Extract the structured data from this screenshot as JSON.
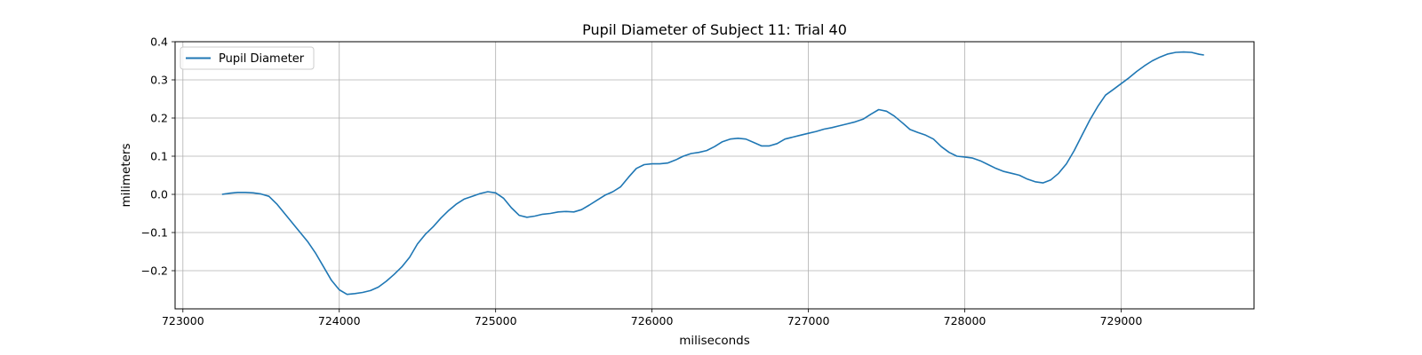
{
  "chart_data": {
    "type": "line",
    "title": "Pupil Diameter of Subject 11: Trial 40",
    "xlabel": "miliseconds",
    "ylabel": "milimeters",
    "xlim": [
      722950,
      729850
    ],
    "ylim": [
      -0.3,
      0.4
    ],
    "xticks": [
      723000,
      724000,
      725000,
      726000,
      727000,
      728000,
      729000
    ],
    "yticks": [
      -0.2,
      -0.1,
      0.0,
      0.1,
      0.2,
      0.3,
      0.4
    ],
    "xtick_labels": [
      "723000",
      "724000",
      "725000",
      "726000",
      "727000",
      "728000",
      "729000"
    ],
    "ytick_labels": [
      "−0.2",
      "−0.1",
      "0.0",
      "0.1",
      "0.2",
      "0.3",
      "0.4"
    ],
    "grid": true,
    "legend": {
      "position": "upper-left",
      "entries": [
        "Pupil Diameter"
      ]
    },
    "series": [
      {
        "name": "Pupil Diameter",
        "color": "#1f77b4",
        "x": [
          723250,
          723300,
          723350,
          723400,
          723450,
          723500,
          723550,
          723600,
          723650,
          723700,
          723750,
          723800,
          723850,
          723900,
          723950,
          724000,
          724050,
          724100,
          724150,
          724200,
          724250,
          724300,
          724350,
          724400,
          724450,
          724500,
          724550,
          724600,
          724650,
          724700,
          724750,
          724800,
          724850,
          724900,
          724950,
          725000,
          725050,
          725100,
          725150,
          725200,
          725250,
          725300,
          725350,
          725400,
          725450,
          725500,
          725550,
          725600,
          725650,
          725700,
          725750,
          725800,
          725850,
          725900,
          725950,
          726000,
          726050,
          726100,
          726150,
          726200,
          726250,
          726300,
          726350,
          726400,
          726450,
          726500,
          726550,
          726600,
          726650,
          726700,
          726750,
          726800,
          726850,
          726900,
          726950,
          727000,
          727050,
          727100,
          727150,
          727200,
          727250,
          727300,
          727350,
          727400,
          727450,
          727500,
          727550,
          727600,
          727650,
          727700,
          727750,
          727800,
          727850,
          727900,
          727950,
          728000,
          728050,
          728100,
          728150,
          728200,
          728250,
          728300,
          728350,
          728400,
          728450,
          728500,
          728550,
          728600,
          728650,
          728700,
          728750,
          728800,
          728850,
          728900,
          728950,
          729000,
          729050,
          729100,
          729150,
          729200,
          729250,
          729300,
          729350,
          729400,
          729450,
          729500,
          729530
        ],
        "values": [
          0.0,
          0.003,
          0.005,
          0.005,
          0.004,
          0.001,
          -0.005,
          -0.025,
          -0.05,
          -0.075,
          -0.1,
          -0.125,
          -0.155,
          -0.19,
          -0.225,
          -0.25,
          -0.262,
          -0.26,
          -0.257,
          -0.252,
          -0.243,
          -0.228,
          -0.21,
          -0.19,
          -0.165,
          -0.13,
          -0.105,
          -0.085,
          -0.062,
          -0.042,
          -0.025,
          -0.012,
          -0.005,
          0.002,
          0.007,
          0.004,
          -0.01,
          -0.035,
          -0.055,
          -0.06,
          -0.057,
          -0.052,
          -0.05,
          -0.046,
          -0.045,
          -0.046,
          -0.04,
          -0.028,
          -0.015,
          -0.002,
          0.007,
          0.02,
          0.045,
          0.068,
          0.078,
          0.08,
          0.08,
          0.082,
          0.09,
          0.1,
          0.107,
          0.11,
          0.115,
          0.125,
          0.138,
          0.145,
          0.147,
          0.145,
          0.136,
          0.127,
          0.127,
          0.133,
          0.145,
          0.15,
          0.155,
          0.16,
          0.165,
          0.171,
          0.175,
          0.18,
          0.185,
          0.19,
          0.197,
          0.21,
          0.222,
          0.218,
          0.205,
          0.188,
          0.17,
          0.162,
          0.155,
          0.145,
          0.125,
          0.11,
          0.1,
          0.098,
          0.095,
          0.088,
          0.078,
          0.068,
          0.06,
          0.055,
          0.05,
          0.04,
          0.033,
          0.03,
          0.038,
          0.055,
          0.08,
          0.115,
          0.155,
          0.195,
          0.23,
          0.26,
          0.275,
          0.29,
          0.305,
          0.322,
          0.337,
          0.35,
          0.36,
          0.368,
          0.372,
          0.373,
          0.372,
          0.367,
          0.365
        ]
      }
    ]
  }
}
